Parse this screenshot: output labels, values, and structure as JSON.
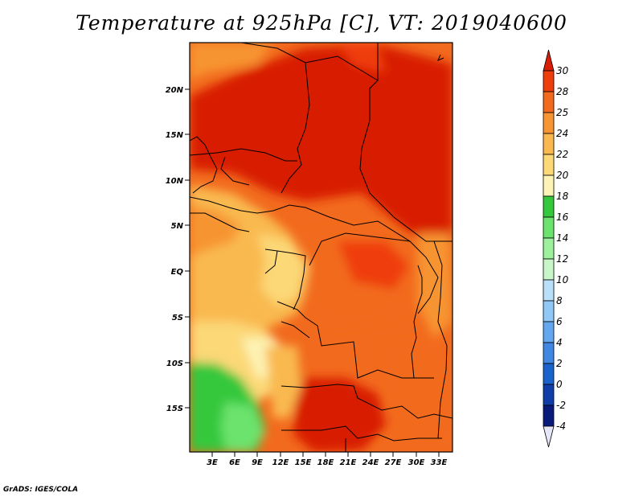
{
  "title": "Temperature at 925hPa [C], VT: 2019040600",
  "credit": "GrADS: IGES/COLA",
  "map": {
    "variable": "Temperature at 925hPa",
    "units": "C",
    "valid_time": "2019040600",
    "lat_ticks": [
      "20N",
      "15N",
      "10N",
      "5N",
      "EQ",
      "5S",
      "10S",
      "15S"
    ],
    "lon_ticks": [
      "3E",
      "6E",
      "9E",
      "12E",
      "15E",
      "18E",
      "21E",
      "24E",
      "27E",
      "30E",
      "33E"
    ]
  },
  "colorbar": {
    "levels": [
      "30",
      "28",
      "25",
      "24",
      "22",
      "20",
      "18",
      "16",
      "14",
      "12",
      "10",
      "8",
      "6",
      "4",
      "2",
      "0",
      "-2",
      "-4"
    ],
    "colors": [
      "#d81e05",
      "#ef3d0c",
      "#f26a1d",
      "#f79433",
      "#f9b94f",
      "#fcd877",
      "#fdf3b4",
      "#36c83c",
      "#6ce36d",
      "#9df19d",
      "#c9f6c8",
      "#b9dff9",
      "#90c9f7",
      "#63a8ef",
      "#3f87e3",
      "#1b63cc",
      "#0f3ea8",
      "#0a1a7a",
      "#e6e6f9"
    ]
  }
}
